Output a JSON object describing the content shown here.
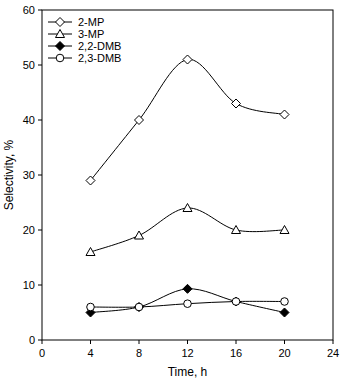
{
  "chart_data": {
    "type": "line",
    "x_label": "Time, h",
    "y_label": "Selectivity, %",
    "x": [
      4,
      8,
      12,
      16,
      20
    ],
    "series": [
      {
        "name": "2-MP",
        "color": "#000000",
        "marker": "open-diamond",
        "values": [
          29,
          40,
          51,
          43,
          41
        ]
      },
      {
        "name": "3-MP",
        "color": "#000000",
        "marker": "open-triangle",
        "values": [
          16,
          19,
          24,
          20,
          20
        ]
      },
      {
        "name": "2,2-DMB",
        "color": "#000000",
        "marker": "filled-diamond",
        "values": [
          5,
          6,
          9.3,
          7,
          5
        ]
      },
      {
        "name": "2,3-DMB",
        "color": "#000000",
        "marker": "open-circle",
        "values": [
          6,
          6,
          6.6,
          7,
          7
        ]
      }
    ],
    "xlim": [
      0,
      24
    ],
    "xticks": [
      0,
      4,
      8,
      12,
      16,
      20,
      24
    ],
    "ylim": [
      0,
      60
    ],
    "yticks": [
      0,
      10,
      20,
      30,
      40,
      50,
      60
    ],
    "grid": false,
    "legend": "top-left"
  }
}
